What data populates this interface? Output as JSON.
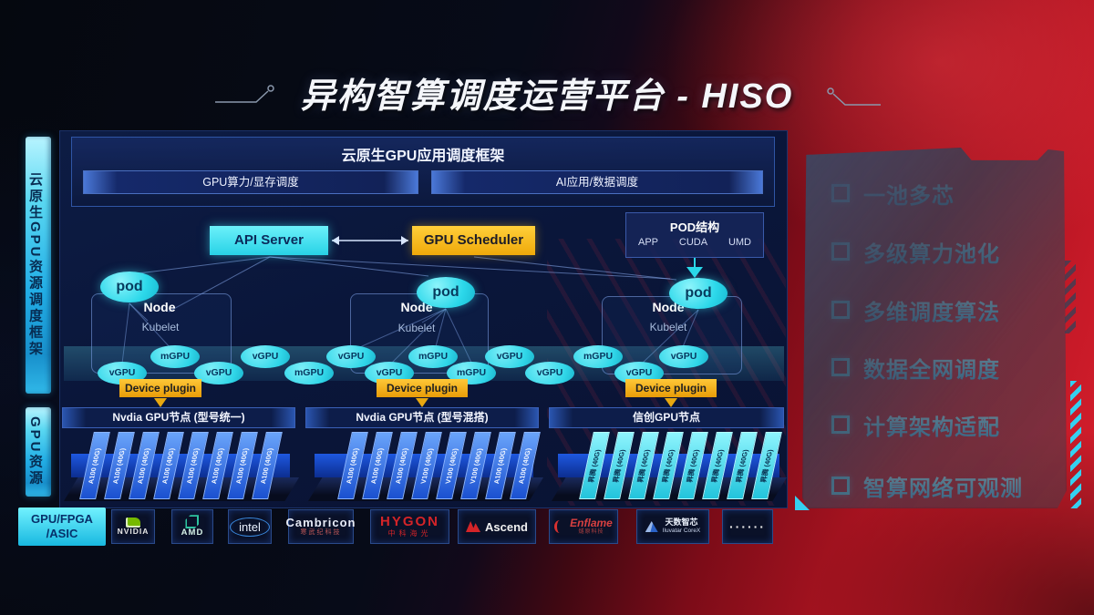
{
  "title": {
    "text": "异构智算调度运营平台 - HISO"
  },
  "sidebar": {
    "top": "云原生GPU资源调度框架",
    "bottom": "GPU资源"
  },
  "framework": {
    "title": "云原生GPU应用调度框架",
    "left_bar": "GPU算力/显存调度",
    "right_bar": "AI应用/数据调度"
  },
  "scheduler": {
    "api_server": "API Server",
    "gpu_scheduler": "GPU Scheduler"
  },
  "pod_structure": {
    "title": "POD结构",
    "items": [
      "APP",
      "CUDA",
      "UMD"
    ]
  },
  "nodes": [
    {
      "pod": "pod",
      "label": "Node",
      "kubelet": "Kubelet",
      "device_plugin": "Device plugin"
    },
    {
      "pod": "pod",
      "label": "Node",
      "kubelet": "Kubelet",
      "device_plugin": "Device plugin"
    },
    {
      "pod": "pod",
      "label": "Node",
      "kubelet": "Kubelet",
      "device_plugin": "Device plugin"
    }
  ],
  "gpu_band": {
    "labels": [
      "vGPU",
      "mGPU",
      "vGPU",
      "vGPU",
      "mGPU",
      "vGPU",
      "vGPU",
      "mGPU",
      "mGPU",
      "vGPU",
      "vGPU",
      "mGPU",
      "vGPU",
      "vGPU"
    ]
  },
  "gpu_groups": [
    {
      "header": "Nvdia GPU节点 (型号统一)",
      "style": "blue",
      "cards": [
        "A100 (40G)",
        "A100 (40G)",
        "A100 (40G)",
        "A100 (40G)",
        "A100 (40G)",
        "A100 (40G)",
        "A100 (40G)",
        "A100 (40G)"
      ]
    },
    {
      "header": "Nvdia GPU节点 (型号混搭)",
      "style": "blue",
      "cards": [
        "A100 (40G)",
        "A100 (40G)",
        "A100 (40G)",
        "V100 (40G)",
        "V100 (40G)",
        "V100 (40G)",
        "A100 (40G)",
        "A100 (40G)"
      ]
    },
    {
      "header": "信创GPU节点",
      "style": "cyan",
      "cards": [
        "昇腾 (40G)",
        "昇腾 (40G)",
        "昇腾 (40G)",
        "昇腾 (40G)",
        "昇腾 (40G)",
        "昇腾 (40G)",
        "昇腾 (40G)",
        "昇腾 (40G)"
      ]
    }
  ],
  "vendor_row": {
    "label_line1": "GPU/FPGA",
    "label_line2": "/ASIC",
    "items": [
      {
        "name": "NVIDIA",
        "sub": "",
        "type": "nvidia"
      },
      {
        "name": "AMD",
        "sub": "",
        "type": "amd"
      },
      {
        "name": "intel",
        "sub": "",
        "type": "intel"
      },
      {
        "name": "Cambricon",
        "sub": "寒武纪科技",
        "type": "cambricon"
      },
      {
        "name": "HYGON",
        "sub": "中科海光",
        "type": "hygon"
      },
      {
        "name": "Ascend",
        "sub": "",
        "type": "ascend"
      },
      {
        "name": "Enflame",
        "sub": "燧原科技",
        "type": "enflame"
      },
      {
        "name": "天数智芯",
        "sub": "Iluvatar CoreX",
        "type": "iluvatar"
      },
      {
        "name": "······",
        "sub": "",
        "type": "dots"
      }
    ]
  },
  "right_panel": {
    "items": [
      "一池多芯",
      "多级算力池化",
      "多维调度算法",
      "数据全网调度",
      "计算架构适配",
      "智算网络可观测"
    ]
  },
  "colors": {
    "accent_cyan": "#3ae2f0",
    "accent_orange": "#f5b50a",
    "card_blue": "#2a6af0",
    "card_cyan": "#55e2f2",
    "bg_red": "#b8111f"
  }
}
